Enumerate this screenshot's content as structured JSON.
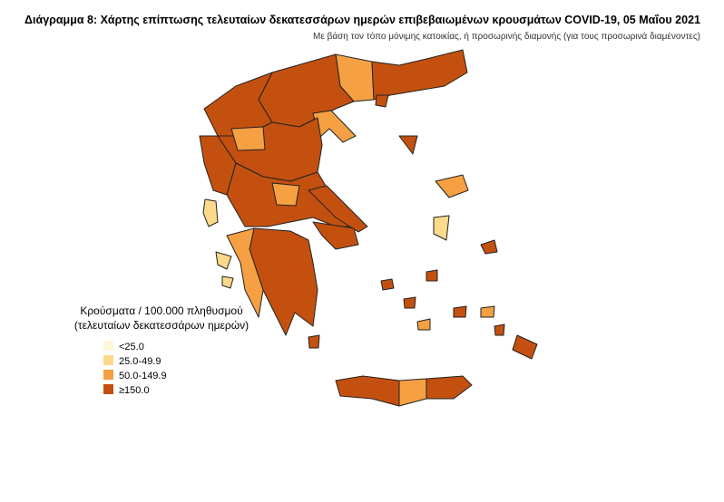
{
  "header": {
    "title": "Διάγραμμα 8: Χάρτης επίπτωσης τελευταίων δεκατεσσάρων ημερών επιβεβαιωμένων κρουσμάτων COVID-19, 05 Μαΐου 2021",
    "subtitle": "Με βάση τον τόπο μόνιμης κατοικίας, ή προσωρινής διαμονής (για τους προσωρινά διαμένοντες)"
  },
  "legend": {
    "title": [
      "Κρούσματα / 100.000 πληθυσμού",
      "(τελευταίων δεκατεσσάρων ημερών)"
    ],
    "items": [
      {
        "label": "<25.0",
        "color": "#fff8d6"
      },
      {
        "label": "25.0-49.9",
        "color": "#fdd98b"
      },
      {
        "label": "50.0-149.9",
        "color": "#f4a043"
      },
      {
        "label": "≥150.0",
        "color": "#c4500f"
      }
    ]
  }
}
